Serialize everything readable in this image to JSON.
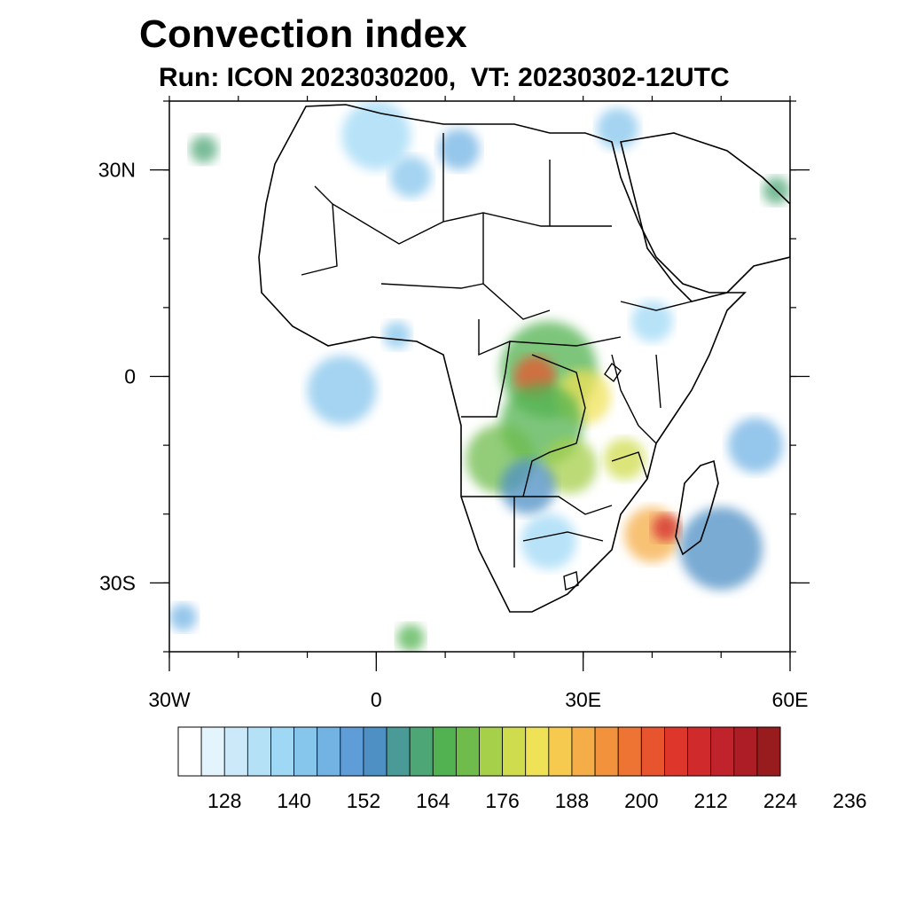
{
  "title": "Convection index",
  "subtitle": "Run: ICON 2023030200,  VT: 20230302-12UTC",
  "map": {
    "region": "Africa",
    "lon_range": [
      -30,
      60
    ],
    "lat_range": [
      -40,
      40
    ],
    "lon_ticks": [
      {
        "value": -30,
        "label": "30W"
      },
      {
        "value": 0,
        "label": "0"
      },
      {
        "value": 30,
        "label": "30E"
      },
      {
        "value": 60,
        "label": "60E"
      }
    ],
    "lat_ticks": [
      {
        "value": 30,
        "label": "30N"
      },
      {
        "value": 0,
        "label": "0"
      },
      {
        "value": -30,
        "label": "30S"
      }
    ],
    "minor_lon_step": 10,
    "minor_lat_step": 10
  },
  "colorbar": {
    "colors": [
      "#ffffff",
      "#e4f4fc",
      "#cbe9f8",
      "#b5e1f7",
      "#9fd8f5",
      "#86c6ec",
      "#72b3e4",
      "#5e9dd8",
      "#4e8fc4",
      "#4a9a98",
      "#4da675",
      "#52b150",
      "#6fbc4d",
      "#a6cf4a",
      "#cfdc4e",
      "#f0e257",
      "#f6c94f",
      "#f5ae47",
      "#f2923c",
      "#ee7433",
      "#e8542d",
      "#df362b",
      "#d12a2c",
      "#c0232b",
      "#ad1d26",
      "#981b1e"
    ],
    "labels": [
      "128",
      "140",
      "152",
      "164",
      "176",
      "188",
      "200",
      "212",
      "224",
      "236"
    ]
  },
  "field_legend": {
    "low": "light blue",
    "mid": "green",
    "high": "red"
  },
  "field_blobs": [
    {
      "lon": 12,
      "lat": 33,
      "r": 3,
      "level": 6
    },
    {
      "lon": 5,
      "lat": 29,
      "r": 3,
      "level": 5
    },
    {
      "lon": 0,
      "lat": 35,
      "r": 5,
      "level": 4
    },
    {
      "lon": -25,
      "lat": 33,
      "r": 2,
      "level": 10
    },
    {
      "lon": 35,
      "lat": 36,
      "r": 3,
      "level": 5
    },
    {
      "lon": 58,
      "lat": 27,
      "r": 2,
      "level": 10
    },
    {
      "lon": 3,
      "lat": 6,
      "r": 2,
      "level": 5
    },
    {
      "lon": -5,
      "lat": -2,
      "r": 5,
      "level": 5
    },
    {
      "lon": 40,
      "lat": 8,
      "r": 3,
      "level": 4
    },
    {
      "lon": 25,
      "lat": 1,
      "r": 7,
      "level": 11
    },
    {
      "lon": 23,
      "lat": 0,
      "r": 3,
      "level": 20
    },
    {
      "lon": 30,
      "lat": -3,
      "r": 4,
      "level": 15
    },
    {
      "lon": 24,
      "lat": -7,
      "r": 6,
      "level": 11
    },
    {
      "lon": 18,
      "lat": -12,
      "r": 5,
      "level": 12
    },
    {
      "lon": 28,
      "lat": -13,
      "r": 4,
      "level": 13
    },
    {
      "lon": 36,
      "lat": -12,
      "r": 3,
      "level": 14
    },
    {
      "lon": 22,
      "lat": -16,
      "r": 4,
      "level": 8
    },
    {
      "lon": 40,
      "lat": -23,
      "r": 4,
      "level": 17
    },
    {
      "lon": 42,
      "lat": -22,
      "r": 2,
      "level": 22
    },
    {
      "lon": 50,
      "lat": -25,
      "r": 6,
      "level": 8
    },
    {
      "lon": 55,
      "lat": -10,
      "r": 4,
      "level": 6
    },
    {
      "lon": 25,
      "lat": -24,
      "r": 4,
      "level": 4
    },
    {
      "lon": -28,
      "lat": -35,
      "r": 2,
      "level": 6
    },
    {
      "lon": 5,
      "lat": -38,
      "r": 2,
      "level": 11
    }
  ]
}
